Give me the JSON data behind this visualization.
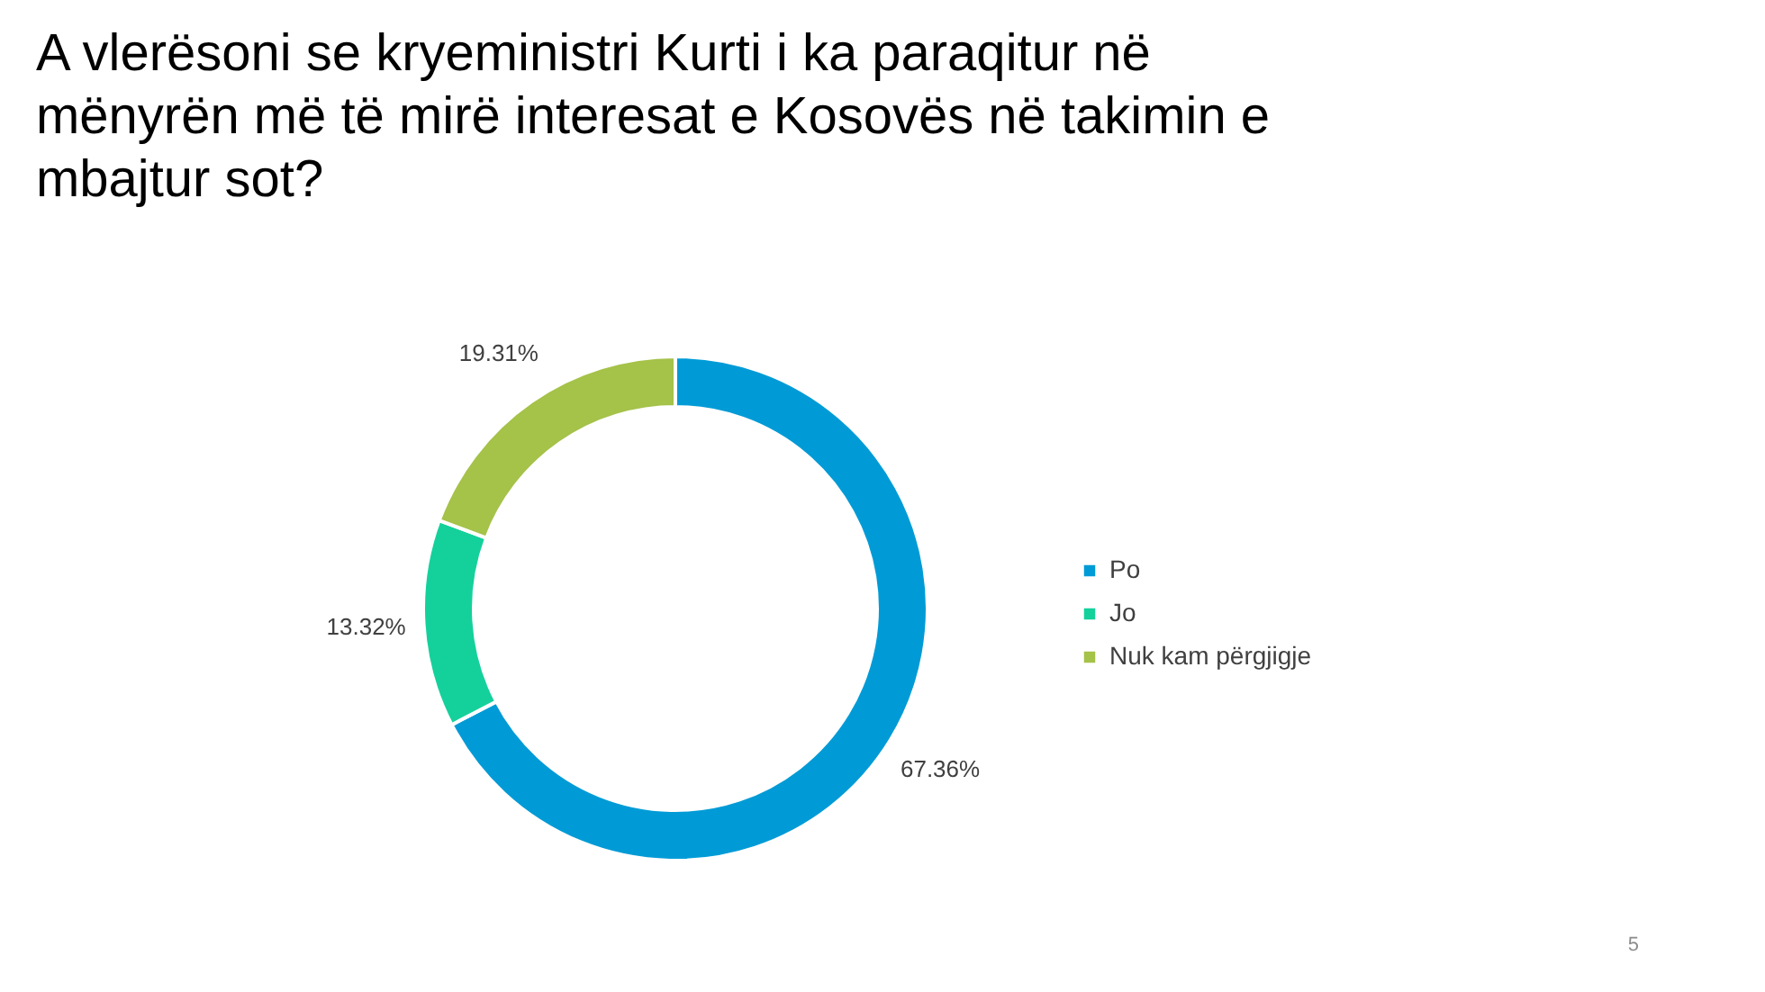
{
  "chart_data": {
    "type": "donut",
    "title": "A vlerësoni se kryeministri Kurti i ka paraqitur në mënyrën më të mirë interesat e Kosovës në takimin e mbajtur sot?",
    "categories": [
      "Po",
      "Jo",
      "Nuk kam përgjigje"
    ],
    "values": [
      67.36,
      13.32,
      19.31
    ],
    "colors": [
      "#009bd6",
      "#14d19b",
      "#a5c249"
    ],
    "value_labels": [
      "67.36%",
      "13.32%",
      "19.31%"
    ],
    "legend": "right",
    "annotations": [
      "5"
    ]
  }
}
